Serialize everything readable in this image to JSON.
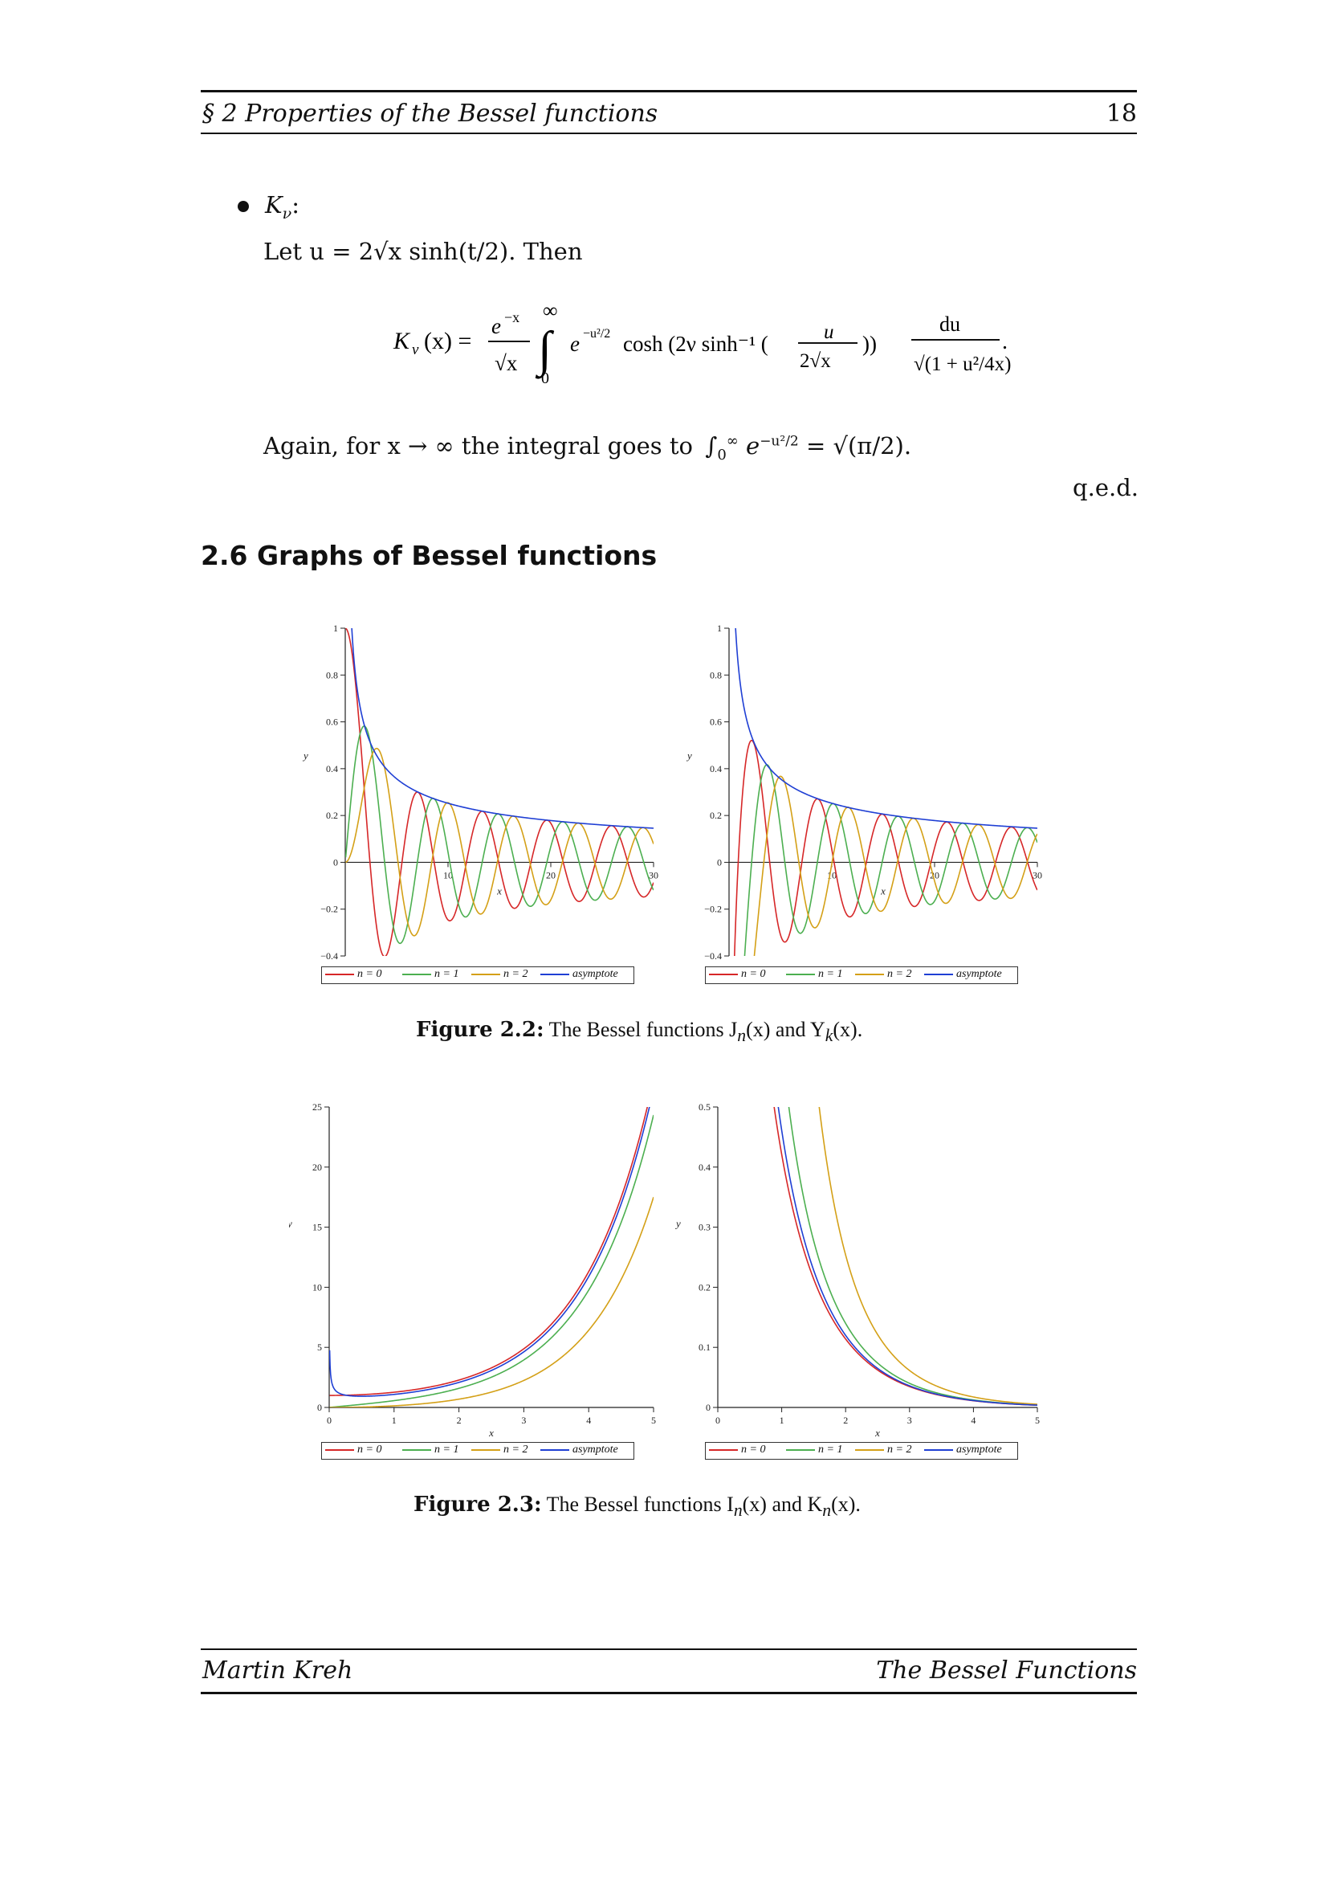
{
  "header": {
    "section": "§ 2  Properties of the Bessel functions",
    "page_number": "18"
  },
  "footer": {
    "author": "Martin Kreh",
    "title": "The Bessel Functions"
  },
  "bullet": {
    "label": "K",
    "label_sub": "ν",
    "let_line": "Let u = 2√x sinh(t/2). Then",
    "formula_lhs": "K",
    "again_line": "Again, for x → ∞ the integral goes to",
    "qed": "q.e.d."
  },
  "section_heading": "2.6  Graphs of Bessel functions",
  "legend": {
    "n0": "n = 0",
    "n1": "n = 1",
    "n2": "n = 2",
    "asym": "asymptote"
  },
  "colors": {
    "n0": "#d62728",
    "n1": "#4caf50",
    "n2": "#d4a017",
    "asym": "#1f3fd4"
  },
  "captions": {
    "fig22_label": "Figure 2.2:",
    "fig22_text": "The Bessel functions J",
    "fig22_mid": "(x) and Y",
    "fig22_end": "(x).",
    "fig23_label": "Figure 2.3:",
    "fig23_text": "The Bessel functions I",
    "fig23_mid": "(x) and K",
    "fig23_end": "(x)."
  },
  "chart_data": [
    {
      "type": "line",
      "title": "",
      "xlabel": "x",
      "ylabel": "y",
      "xlim": [
        0,
        30
      ],
      "ylim": [
        -0.4,
        1
      ],
      "xticks": [
        10,
        20,
        30
      ],
      "yticks": [
        -0.4,
        -0.2,
        0,
        0.2,
        0.4,
        0.6,
        0.8,
        1
      ],
      "series": [
        {
          "name": "n = 0",
          "function": "J0"
        },
        {
          "name": "n = 1",
          "function": "J1"
        },
        {
          "name": "n = 2",
          "function": "J2"
        },
        {
          "name": "asymptote",
          "function": "sqrt(2/(pi x))"
        }
      ]
    },
    {
      "type": "line",
      "title": "",
      "xlabel": "x",
      "ylabel": "y",
      "xlim": [
        0,
        30
      ],
      "ylim": [
        -0.4,
        1
      ],
      "xticks": [
        10,
        20,
        30
      ],
      "yticks": [
        -0.4,
        -0.2,
        0,
        0.2,
        0.4,
        0.6,
        0.8,
        1
      ],
      "series": [
        {
          "name": "n = 0",
          "function": "Y0"
        },
        {
          "name": "n = 1",
          "function": "Y1"
        },
        {
          "name": "n = 2",
          "function": "Y2"
        },
        {
          "name": "asymptote",
          "function": "sqrt(2/(pi x))"
        }
      ]
    },
    {
      "type": "line",
      "title": "",
      "xlabel": "x",
      "ylabel": "y",
      "xlim": [
        0,
        5
      ],
      "ylim": [
        0,
        25
      ],
      "xticks": [
        0,
        1,
        2,
        3,
        4,
        5
      ],
      "yticks": [
        0,
        5,
        10,
        15,
        20,
        25
      ],
      "series": [
        {
          "name": "n = 0",
          "function": "I0"
        },
        {
          "name": "n = 1",
          "function": "I1"
        },
        {
          "name": "n = 2",
          "function": "I2"
        },
        {
          "name": "asymptote",
          "function": "e^x/sqrt(2 pi x)"
        }
      ]
    },
    {
      "type": "line",
      "title": "",
      "xlabel": "x",
      "ylabel": "y",
      "xlim": [
        0,
        5
      ],
      "ylim": [
        0,
        0.5
      ],
      "xticks": [
        0,
        1,
        2,
        3,
        4,
        5
      ],
      "yticks": [
        0,
        0.1,
        0.2,
        0.3,
        0.4,
        0.5
      ],
      "series": [
        {
          "name": "n = 0",
          "function": "K0"
        },
        {
          "name": "n = 1",
          "function": "K1"
        },
        {
          "name": "n = 2",
          "function": "K2"
        },
        {
          "name": "asymptote",
          "function": "sqrt(pi/(2x)) e^-x"
        }
      ]
    }
  ]
}
